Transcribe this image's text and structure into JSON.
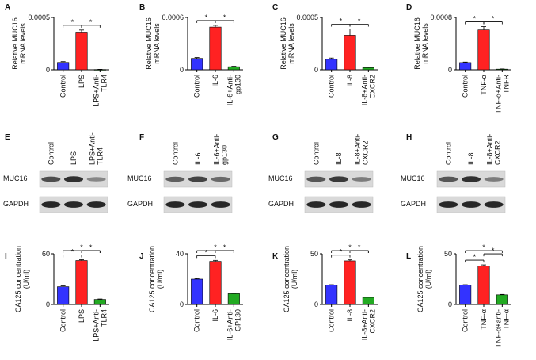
{
  "colors": {
    "blue": "#3333ff",
    "red": "#ff2222",
    "green": "#22aa22",
    "axis": "#000000"
  },
  "chart_data": [
    {
      "panel": "A",
      "type": "bar",
      "ylabel": "Relative MUC16\nmRNA levels",
      "categories": [
        "Control",
        "LPS",
        "LPS+Anti-\nTLR4"
      ],
      "values": [
        7e-05,
        0.00036,
        2.5e-06
      ],
      "errors": [
        8e-06,
        2e-05,
        2e-06
      ],
      "ylim": [
        0,
        0.0005
      ],
      "yticks": [
        "0",
        "0.0005"
      ],
      "yticks_v": [
        0,
        0.0005
      ],
      "sig": [
        {
          "from": 0,
          "to": 1,
          "level": 0,
          "text": "*"
        },
        {
          "from": 1,
          "to": 2,
          "level": 0,
          "text": "*"
        }
      ]
    },
    {
      "panel": "B",
      "type": "bar",
      "ylabel": "Relative MUC16\nmRNA levels",
      "categories": [
        "Control",
        "IL-6",
        "IL-6+Anti-\ngp130"
      ],
      "values": [
        0.00013,
        0.00049,
        3.5e-05
      ],
      "errors": [
        1e-05,
        2e-05,
        5e-06
      ],
      "ylim": [
        0,
        0.0006
      ],
      "yticks": [
        "0",
        "0.0006"
      ],
      "yticks_v": [
        0,
        0.0006
      ],
      "sig": [
        {
          "from": 0,
          "to": 1,
          "level": 0,
          "text": "*"
        },
        {
          "from": 1,
          "to": 2,
          "level": 0,
          "text": "*"
        }
      ]
    },
    {
      "panel": "C",
      "type": "bar",
      "ylabel": "Relative MUC16\nmRNA levels",
      "categories": [
        "Control",
        "IL-8",
        "IL-8+Anti-\nCXCR2"
      ],
      "values": [
        0.0001,
        0.00033,
        2e-05
      ],
      "errors": [
        1.2e-05,
        6e-05,
        5e-06
      ],
      "ylim": [
        0,
        0.0005
      ],
      "yticks": [
        "0",
        "0.0005"
      ],
      "yticks_v": [
        0,
        0.0005
      ],
      "sig": [
        {
          "from": 0,
          "to": 1,
          "level": 0,
          "text": "*"
        },
        {
          "from": 1,
          "to": 2,
          "level": 0,
          "text": "*"
        }
      ]
    },
    {
      "panel": "D",
      "type": "bar",
      "ylabel": "Relative MUC16\nmRNA levels",
      "categories": [
        "Control",
        "TNF-α",
        "TNF-α+Anti-\nTNFR"
      ],
      "values": [
        0.00011,
        0.00061,
        1e-05
      ],
      "errors": [
        8e-06,
        5e-05,
        3e-06
      ],
      "ylim": [
        0,
        0.0008
      ],
      "yticks": [
        "0",
        "0.0008"
      ],
      "yticks_v": [
        0,
        0.0008
      ],
      "sig": [
        {
          "from": 0,
          "to": 1,
          "level": 0,
          "text": "*"
        },
        {
          "from": 1,
          "to": 2,
          "level": 0,
          "text": "*"
        }
      ]
    },
    {
      "panel": "I",
      "type": "bar",
      "ylabel": "CA125 concentration\n(U/ml)",
      "categories": [
        "Control",
        "LPS",
        "LPS+Anti-\nTLR4"
      ],
      "values": [
        21,
        52,
        6
      ],
      "errors": [
        1,
        1,
        0.5
      ],
      "ylim": [
        0,
        60
      ],
      "yticks": [
        "0",
        "60"
      ],
      "yticks_v": [
        0,
        60
      ],
      "sig": [
        {
          "from": 0,
          "to": 1,
          "level": 0,
          "text": "*"
        },
        {
          "from": 1,
          "to": 2,
          "level": 1,
          "text": "*"
        },
        {
          "from": 0,
          "to": 2,
          "level": 2,
          "text": "*"
        }
      ]
    },
    {
      "panel": "J",
      "type": "bar",
      "ylabel": "CA125 concentration\n(U/ml)",
      "categories": [
        "Control",
        "IL-6",
        "IL-6+Anti-\nGP130"
      ],
      "values": [
        20,
        34,
        8.5
      ],
      "errors": [
        0.5,
        0.8,
        0.3
      ],
      "ylim": [
        0,
        40
      ],
      "yticks": [
        "0",
        "40"
      ],
      "yticks_v": [
        0,
        40
      ],
      "sig": [
        {
          "from": 0,
          "to": 1,
          "level": 0,
          "text": "*"
        },
        {
          "from": 1,
          "to": 2,
          "level": 1,
          "text": "*"
        },
        {
          "from": 0,
          "to": 2,
          "level": 2,
          "text": "*"
        }
      ]
    },
    {
      "panel": "K",
      "type": "bar",
      "ylabel": "CA125 concentration\n(U/ml)",
      "categories": [
        "Control",
        "IL-8",
        "IL-8+Anti-\nCXCR2"
      ],
      "values": [
        19,
        43,
        7
      ],
      "errors": [
        0.5,
        1,
        0.4
      ],
      "ylim": [
        0,
        50
      ],
      "yticks": [
        "0",
        "50"
      ],
      "yticks_v": [
        0,
        50
      ],
      "sig": [
        {
          "from": 0,
          "to": 1,
          "level": 0,
          "text": "*"
        },
        {
          "from": 1,
          "to": 2,
          "level": 1,
          "text": "*"
        },
        {
          "from": 0,
          "to": 2,
          "level": 2,
          "text": "*"
        }
      ]
    },
    {
      "panel": "L",
      "type": "bar",
      "ylabel": "CA125 concentration\n(U/ml)",
      "categories": [
        "Control",
        "TNF-α",
        "TNF-α+anti-\nTNF-α"
      ],
      "values": [
        19,
        38,
        9.5
      ],
      "errors": [
        0.5,
        1,
        0.4
      ],
      "ylim": [
        0,
        50
      ],
      "yticks": [
        "0",
        "50"
      ],
      "yticks_v": [
        0,
        50
      ],
      "sig": [
        {
          "from": 0,
          "to": 1,
          "level": 0,
          "text": "*"
        },
        {
          "from": 1,
          "to": 2,
          "level": 1,
          "text": "*"
        },
        {
          "from": 0,
          "to": 2,
          "level": 2,
          "text": "*"
        }
      ]
    }
  ],
  "blots": [
    {
      "panel": "E",
      "lanes": [
        "Control",
        "LPS",
        "LPS+Anti-\nTLR4"
      ],
      "rows": [
        "MUC16",
        "GAPDH"
      ],
      "intensity": [
        [
          0.65,
          0.8,
          0.35
        ],
        [
          0.85,
          0.85,
          0.85
        ]
      ]
    },
    {
      "panel": "F",
      "lanes": [
        "Control",
        "IL-6",
        "IL-6+Anti-\ngp130"
      ],
      "rows": [
        "MUC16",
        "GAPDH"
      ],
      "intensity": [
        [
          0.55,
          0.7,
          0.5
        ],
        [
          0.85,
          0.85,
          0.85
        ]
      ]
    },
    {
      "panel": "G",
      "lanes": [
        "Control",
        "IL-8",
        "IL-8+Anti-\nCXCR2"
      ],
      "rows": [
        "MUC16",
        "GAPDH"
      ],
      "intensity": [
        [
          0.6,
          0.75,
          0.4
        ],
        [
          0.85,
          0.85,
          0.85
        ]
      ]
    },
    {
      "panel": "H",
      "lanes": [
        "Control",
        "IL-8",
        "IL-8+Anti-\nCXCR2"
      ],
      "rows": [
        "MUC16",
        "GAPDH"
      ],
      "intensity": [
        [
          0.6,
          0.8,
          0.4
        ],
        [
          0.85,
          0.85,
          0.85
        ]
      ]
    }
  ]
}
